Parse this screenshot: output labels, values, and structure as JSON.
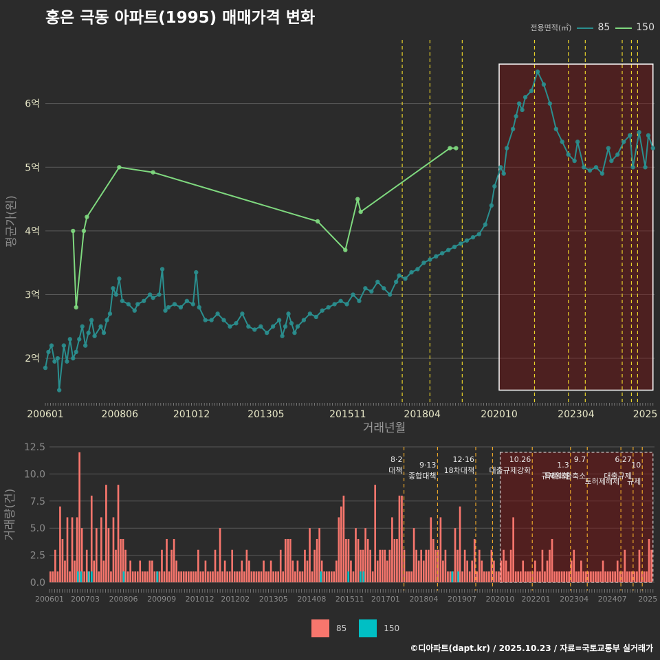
{
  "title": "홍은 극동 아파트(1995) 매매가격 변화",
  "legend_top": {
    "title": "전용면적(㎡)",
    "series": [
      {
        "label": "85",
        "color": "#2a8f8f"
      },
      {
        "label": "150",
        "color": "#7fd97f"
      }
    ]
  },
  "legend_bottom": {
    "series": [
      {
        "label": "85",
        "color": "#f8766d"
      },
      {
        "label": "150",
        "color": "#00bfc4"
      }
    ]
  },
  "footer": "©디아파트(dapt.kr) / 2025.10.23 / 자료=국토교통부 실거래가",
  "chart_data": [
    {
      "type": "line",
      "name": "price",
      "ylabel": "평균가(원)",
      "xlabel": "거래년월",
      "xlim": [
        2006.0,
        2025.8
      ],
      "ylim": [
        1.3,
        7.0
      ],
      "y_ticks": [
        {
          "v": 2,
          "label": "2억"
        },
        {
          "v": 3,
          "label": "3억"
        },
        {
          "v": 4,
          "label": "4억"
        },
        {
          "v": 5,
          "label": "5억"
        },
        {
          "v": 6,
          "label": "6억"
        }
      ],
      "x_ticks": [
        {
          "v": 2006.0,
          "label": "200601"
        },
        {
          "v": 2008.42,
          "label": "200806"
        },
        {
          "v": 2010.75,
          "label": "201012"
        },
        {
          "v": 2013.17,
          "label": "201305"
        },
        {
          "v": 2015.83,
          "label": "201511"
        },
        {
          "v": 2018.25,
          "label": "201804"
        },
        {
          "v": 2020.75,
          "label": "202010"
        },
        {
          "v": 2023.25,
          "label": "202304"
        },
        {
          "v": 2025.5,
          "label": "2025"
        }
      ],
      "highlight_range": [
        2020.75,
        2025.75
      ],
      "highlight_ymin": 1.5,
      "highlight_ymax": 6.62,
      "series": [
        {
          "name": "85",
          "color": "#2a8f8f",
          "points": [
            [
              2006.0,
              1.85
            ],
            [
              2006.1,
              2.1
            ],
            [
              2006.2,
              2.2
            ],
            [
              2006.3,
              1.95
            ],
            [
              2006.4,
              2.0
            ],
            [
              2006.45,
              1.5
            ],
            [
              2006.6,
              2.2
            ],
            [
              2006.7,
              1.95
            ],
            [
              2006.8,
              2.3
            ],
            [
              2006.9,
              2.0
            ],
            [
              2007.0,
              2.1
            ],
            [
              2007.1,
              2.3
            ],
            [
              2007.2,
              2.5
            ],
            [
              2007.3,
              2.2
            ],
            [
              2007.4,
              2.4
            ],
            [
              2007.5,
              2.6
            ],
            [
              2007.6,
              2.35
            ],
            [
              2007.8,
              2.5
            ],
            [
              2007.9,
              2.4
            ],
            [
              2008.0,
              2.6
            ],
            [
              2008.1,
              2.7
            ],
            [
              2008.2,
              3.1
            ],
            [
              2008.3,
              3.0
            ],
            [
              2008.4,
              3.25
            ],
            [
              2008.5,
              2.9
            ],
            [
              2008.7,
              2.85
            ],
            [
              2008.9,
              2.75
            ],
            [
              2009.0,
              2.85
            ],
            [
              2009.2,
              2.9
            ],
            [
              2009.4,
              3.0
            ],
            [
              2009.5,
              2.95
            ],
            [
              2009.7,
              3.0
            ],
            [
              2009.8,
              3.4
            ],
            [
              2009.9,
              2.75
            ],
            [
              2010.0,
              2.8
            ],
            [
              2010.2,
              2.85
            ],
            [
              2010.4,
              2.8
            ],
            [
              2010.6,
              2.9
            ],
            [
              2010.8,
              2.85
            ],
            [
              2010.9,
              3.35
            ],
            [
              2011.0,
              2.8
            ],
            [
              2011.2,
              2.6
            ],
            [
              2011.4,
              2.6
            ],
            [
              2011.6,
              2.7
            ],
            [
              2011.8,
              2.6
            ],
            [
              2012.0,
              2.5
            ],
            [
              2012.2,
              2.55
            ],
            [
              2012.4,
              2.7
            ],
            [
              2012.6,
              2.5
            ],
            [
              2012.8,
              2.45
            ],
            [
              2013.0,
              2.5
            ],
            [
              2013.2,
              2.4
            ],
            [
              2013.4,
              2.5
            ],
            [
              2013.6,
              2.6
            ],
            [
              2013.7,
              2.35
            ],
            [
              2013.8,
              2.5
            ],
            [
              2013.9,
              2.7
            ],
            [
              2014.0,
              2.55
            ],
            [
              2014.1,
              2.4
            ],
            [
              2014.2,
              2.5
            ],
            [
              2014.4,
              2.6
            ],
            [
              2014.6,
              2.7
            ],
            [
              2014.8,
              2.65
            ],
            [
              2015.0,
              2.75
            ],
            [
              2015.2,
              2.8
            ],
            [
              2015.4,
              2.85
            ],
            [
              2015.6,
              2.9
            ],
            [
              2015.8,
              2.85
            ],
            [
              2016.0,
              3.0
            ],
            [
              2016.2,
              2.9
            ],
            [
              2016.4,
              3.1
            ],
            [
              2016.6,
              3.05
            ],
            [
              2016.8,
              3.2
            ],
            [
              2017.0,
              3.1
            ],
            [
              2017.2,
              3.0
            ],
            [
              2017.4,
              3.2
            ],
            [
              2017.5,
              3.3
            ],
            [
              2017.7,
              3.25
            ],
            [
              2017.9,
              3.35
            ],
            [
              2018.1,
              3.4
            ],
            [
              2018.3,
              3.5
            ],
            [
              2018.5,
              3.55
            ],
            [
              2018.7,
              3.6
            ],
            [
              2018.9,
              3.65
            ],
            [
              2019.1,
              3.7
            ],
            [
              2019.3,
              3.75
            ],
            [
              2019.5,
              3.8
            ],
            [
              2019.7,
              3.85
            ],
            [
              2019.9,
              3.9
            ],
            [
              2020.1,
              3.95
            ],
            [
              2020.3,
              4.1
            ],
            [
              2020.5,
              4.4
            ],
            [
              2020.6,
              4.7
            ],
            [
              2020.8,
              5.0
            ],
            [
              2020.9,
              4.9
            ],
            [
              2021.0,
              5.3
            ],
            [
              2021.2,
              5.6
            ],
            [
              2021.3,
              5.8
            ],
            [
              2021.4,
              6.0
            ],
            [
              2021.5,
              5.9
            ],
            [
              2021.6,
              6.1
            ],
            [
              2021.8,
              6.2
            ],
            [
              2022.0,
              6.5
            ],
            [
              2022.2,
              6.3
            ],
            [
              2022.4,
              6.0
            ],
            [
              2022.6,
              5.6
            ],
            [
              2022.8,
              5.4
            ],
            [
              2023.0,
              5.2
            ],
            [
              2023.2,
              5.1
            ],
            [
              2023.3,
              5.4
            ],
            [
              2023.5,
              5.0
            ],
            [
              2023.7,
              4.95
            ],
            [
              2023.9,
              5.0
            ],
            [
              2024.1,
              4.9
            ],
            [
              2024.3,
              5.3
            ],
            [
              2024.4,
              5.1
            ],
            [
              2024.6,
              5.2
            ],
            [
              2024.8,
              5.4
            ],
            [
              2025.0,
              5.5
            ],
            [
              2025.1,
              5.0
            ],
            [
              2025.3,
              5.55
            ],
            [
              2025.5,
              5.0
            ],
            [
              2025.6,
              5.5
            ],
            [
              2025.75,
              5.3
            ]
          ]
        },
        {
          "name": "150",
          "color": "#7fd97f",
          "points": [
            [
              2006.9,
              4.0
            ],
            [
              2007.0,
              2.8
            ],
            [
              2007.25,
              4.0
            ],
            [
              2007.35,
              4.22
            ],
            [
              2008.4,
              5.0
            ],
            [
              2009.5,
              4.92
            ],
            [
              2014.85,
              4.15
            ],
            [
              2015.75,
              3.7
            ],
            [
              2016.15,
              4.5
            ],
            [
              2016.25,
              4.3
            ],
            [
              2019.15,
              5.3
            ],
            [
              2019.35,
              5.3
            ]
          ]
        }
      ],
      "events": [
        2017.6,
        2018.5,
        2019.55,
        2021.9,
        2023.0,
        2023.55,
        2024.75,
        2025.05,
        2025.25
      ]
    },
    {
      "type": "bar",
      "name": "volume",
      "ylabel": "거래량(건)",
      "xlim": [
        2006.0,
        2025.8
      ],
      "ylim": [
        0,
        12.5
      ],
      "y_ticks": [
        {
          "v": 0,
          "label": "0.0"
        },
        {
          "v": 2.5,
          "label": "2.5"
        },
        {
          "v": 5,
          "label": "5.0"
        },
        {
          "v": 7.5,
          "label": "7.5"
        },
        {
          "v": 10,
          "label": "10.0"
        },
        {
          "v": 12.5,
          "label": "12.5"
        }
      ],
      "x_ticks": [
        {
          "v": 2006.0,
          "label": "200601"
        },
        {
          "v": 2007.17,
          "label": "200703"
        },
        {
          "v": 2008.42,
          "label": "200806"
        },
        {
          "v": 2009.67,
          "label": "200909"
        },
        {
          "v": 2010.92,
          "label": "201012"
        },
        {
          "v": 2012.08,
          "label": "201202"
        },
        {
          "v": 2013.33,
          "label": "201305"
        },
        {
          "v": 2014.58,
          "label": "201408"
        },
        {
          "v": 2015.83,
          "label": "201511"
        },
        {
          "v": 2017.0,
          "label": "201701"
        },
        {
          "v": 2018.25,
          "label": "201804"
        },
        {
          "v": 2019.5,
          "label": "201907"
        },
        {
          "v": 2020.75,
          "label": "202010"
        },
        {
          "v": 2021.92,
          "label": "202201"
        },
        {
          "v": 2023.17,
          "label": "202304"
        },
        {
          "v": 2024.42,
          "label": "202407"
        },
        {
          "v": 2025.58,
          "label": "2025"
        }
      ],
      "highlight_range": [
        2020.75,
        2025.75
      ],
      "highlight_ymax": 12.0,
      "series": [
        {
          "name": "85",
          "color": "#f8766d",
          "values": [
            1,
            1,
            3,
            1,
            7,
            4,
            2,
            6,
            1,
            6,
            2,
            6,
            12,
            5,
            1,
            3,
            1,
            8,
            2,
            5,
            1,
            6,
            2,
            9,
            5,
            1,
            6,
            3,
            9,
            4,
            4,
            3,
            1,
            2,
            1,
            1,
            1,
            2,
            1,
            1,
            1,
            2,
            2,
            1,
            1,
            1,
            3,
            1,
            4,
            1,
            3,
            4,
            2,
            1,
            1,
            1,
            1,
            1,
            1,
            1,
            1,
            3,
            1,
            1,
            2,
            1,
            1,
            1,
            3,
            1,
            5,
            1,
            2,
            1,
            1,
            3,
            1,
            1,
            1,
            2,
            1,
            3,
            2,
            1,
            1,
            1,
            1,
            1,
            2,
            1,
            1,
            2,
            1,
            1,
            1,
            3,
            1,
            4,
            4,
            4,
            2,
            1,
            2,
            1,
            1,
            3,
            2,
            5,
            1,
            3,
            4,
            5,
            2,
            1,
            1,
            1,
            1,
            1,
            2,
            6,
            7,
            8,
            4,
            4,
            2,
            1,
            5,
            4,
            3,
            3,
            5,
            4,
            3,
            1,
            9,
            2,
            3,
            3,
            3,
            2,
            3,
            6,
            4,
            4,
            8,
            8,
            3,
            1,
            1,
            1,
            5,
            3,
            2,
            3,
            2,
            3,
            3,
            6,
            4,
            3,
            3,
            6,
            2,
            3,
            1,
            1,
            1,
            5,
            3,
            7,
            1,
            3,
            2,
            1,
            2,
            4,
            1,
            3,
            2,
            1,
            1,
            1,
            3,
            2,
            1,
            1,
            2,
            3,
            2,
            1,
            3,
            6,
            1,
            1,
            1,
            2,
            1,
            1,
            1,
            1,
            2,
            1,
            1,
            3,
            1,
            2,
            3,
            4,
            1,
            1,
            1,
            1,
            1,
            1,
            1,
            2,
            3,
            1,
            1,
            2,
            1,
            1,
            1,
            1,
            1,
            1,
            1,
            1,
            2,
            1,
            1,
            1,
            1,
            1,
            2,
            1,
            1,
            3,
            1,
            1,
            1,
            1,
            1,
            3,
            1,
            1,
            1,
            4,
            3
          ]
        },
        {
          "name": "150",
          "color": "#00bfc4",
          "positions": [
            2006.9,
            2007.0,
            2007.25,
            2007.35,
            2008.4,
            2009.5,
            2014.85,
            2015.75,
            2016.15,
            2016.25,
            2019.15,
            2019.35
          ],
          "values": [
            1,
            1,
            1,
            1,
            1,
            1,
            1,
            1,
            1,
            1,
            1,
            1
          ]
        }
      ],
      "events": [
        {
          "x": 2017.6,
          "date": "8·2",
          "label": "대책"
        },
        {
          "x": 2018.7,
          "date": "9·13",
          "label": "종합대책"
        },
        {
          "x": 2019.95,
          "date": "12·16",
          "label": "18차대책"
        },
        {
          "x": 2020.5,
          "date": "",
          "label": ""
        },
        {
          "x": 2021.8,
          "date": "10.26",
          "label": "대출규제강화"
        },
        {
          "x": 2023.05,
          "date": "1.3",
          "label": "규제완화"
        },
        {
          "x": 2023.6,
          "date": "9.7",
          "label": "특례대출축소"
        },
        {
          "x": 2024.7,
          "date": "",
          "label": "토허제해제"
        },
        {
          "x": 2025.1,
          "date": "6.27",
          "label": "대출규제"
        },
        {
          "x": 2025.4,
          "date": "10",
          "label": "규제"
        }
      ]
    }
  ]
}
